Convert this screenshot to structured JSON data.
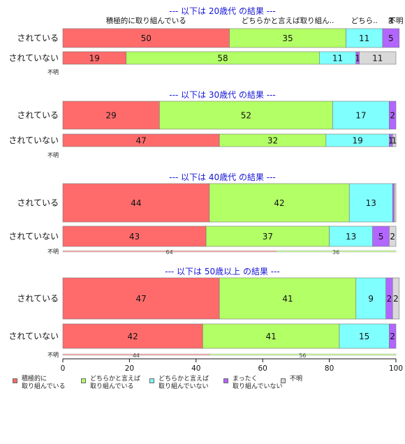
{
  "chart_data": {
    "type": "bar",
    "orientation": "horizontal",
    "stacked": true,
    "xlim": [
      0,
      100
    ],
    "x_ticks": [
      "0",
      "20",
      "40",
      "60",
      "80",
      "100"
    ],
    "categories": [
      "積極的に取り組んでいる",
      "どちらかと言えば取り組んでいる",
      "どちらかと言えば取り組んでいない",
      "まったく取り組んでいない",
      "不明"
    ],
    "colors": [
      "#ff6b6b",
      "#b3ff66",
      "#80ffff",
      "#b266ff",
      "#d9d9d9"
    ],
    "legend_placement": "bottom",
    "top_segment_labels": [
      "積極的に取り組んでいる",
      "どちらかと言えば取り組ん..",
      "どちら..",
      "ま",
      "不明"
    ],
    "panels": [
      {
        "title": "--- 以下は 20歳代 の結果 ---",
        "rows": [
          {
            "label": "されている",
            "values": [
              50,
              35,
              11,
              5,
              0
            ]
          },
          {
            "label": "されていない",
            "values": [
              19,
              58,
              11,
              1,
              11
            ]
          }
        ],
        "unknown_label": "不明",
        "unknown_values": []
      },
      {
        "title": "--- 以下は 30歳代 の結果 ---",
        "rows": [
          {
            "label": "されている",
            "values": [
              29,
              52,
              17,
              2,
              0
            ]
          },
          {
            "label": "されていない",
            "values": [
              47,
              32,
              19,
              1,
              1
            ]
          }
        ],
        "unknown_label": "不明",
        "unknown_values": []
      },
      {
        "title": "--- 以下は 40歳代 の結果 ---",
        "rows": [
          {
            "label": "されている",
            "values": [
              44,
              42,
              13,
              0.5,
              0.5
            ]
          },
          {
            "label": "されていない",
            "values": [
              43,
              37,
              13,
              5,
              2
            ]
          }
        ],
        "unknown_label": "不明",
        "unknown_values": [
          64,
          36
        ]
      },
      {
        "title": "--- 以下は 50歳以上 の結果 ---",
        "rows": [
          {
            "label": "されている",
            "values": [
              47,
              41,
              9,
              2,
              2
            ]
          },
          {
            "label": "されていない",
            "values": [
              42,
              41,
              15,
              2,
              0
            ]
          }
        ],
        "unknown_label": "不明",
        "unknown_values": [
          44,
          56
        ]
      }
    ]
  },
  "legend": [
    {
      "label": "積極的に\n取り組んでいる",
      "color": "#ff6b6b"
    },
    {
      "label": "どちらかと言えば\n取り組んでいる",
      "color": "#b3ff66"
    },
    {
      "label": "どちらかと言えば\n取り組んでいない",
      "color": "#80ffff"
    },
    {
      "label": "まったく\n取り組んでいない",
      "color": "#b266ff"
    },
    {
      "label": "不明",
      "color": "#d9d9d9"
    }
  ]
}
